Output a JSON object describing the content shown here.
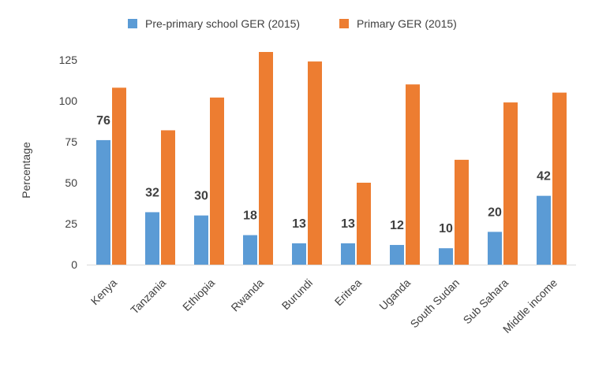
{
  "chart_data": {
    "type": "bar",
    "title": "",
    "xlabel": "",
    "ylabel": "Percentage",
    "ylim": [
      0,
      125
    ],
    "yticks": [
      0,
      25,
      50,
      75,
      100,
      125
    ],
    "grid": false,
    "legend_position": "top",
    "categories": [
      "Kenya",
      "Tanzania",
      "Ethiopia",
      "Rwanda",
      "Burundi",
      "Eritrea",
      "Uganda",
      "South Sudan",
      "Sub Sahara",
      "Middle income"
    ],
    "series": [
      {
        "name": "Pre-primary school GER (2015)",
        "color": "#5b9bd5",
        "values": [
          76,
          32,
          30,
          18,
          13,
          13,
          12,
          10,
          20,
          42
        ],
        "show_labels": true
      },
      {
        "name": "Primary GER (2015)",
        "color": "#ed7d31",
        "values": [
          108,
          82,
          102,
          133,
          124,
          50,
          110,
          64,
          99,
          105
        ],
        "show_labels": false
      }
    ]
  }
}
